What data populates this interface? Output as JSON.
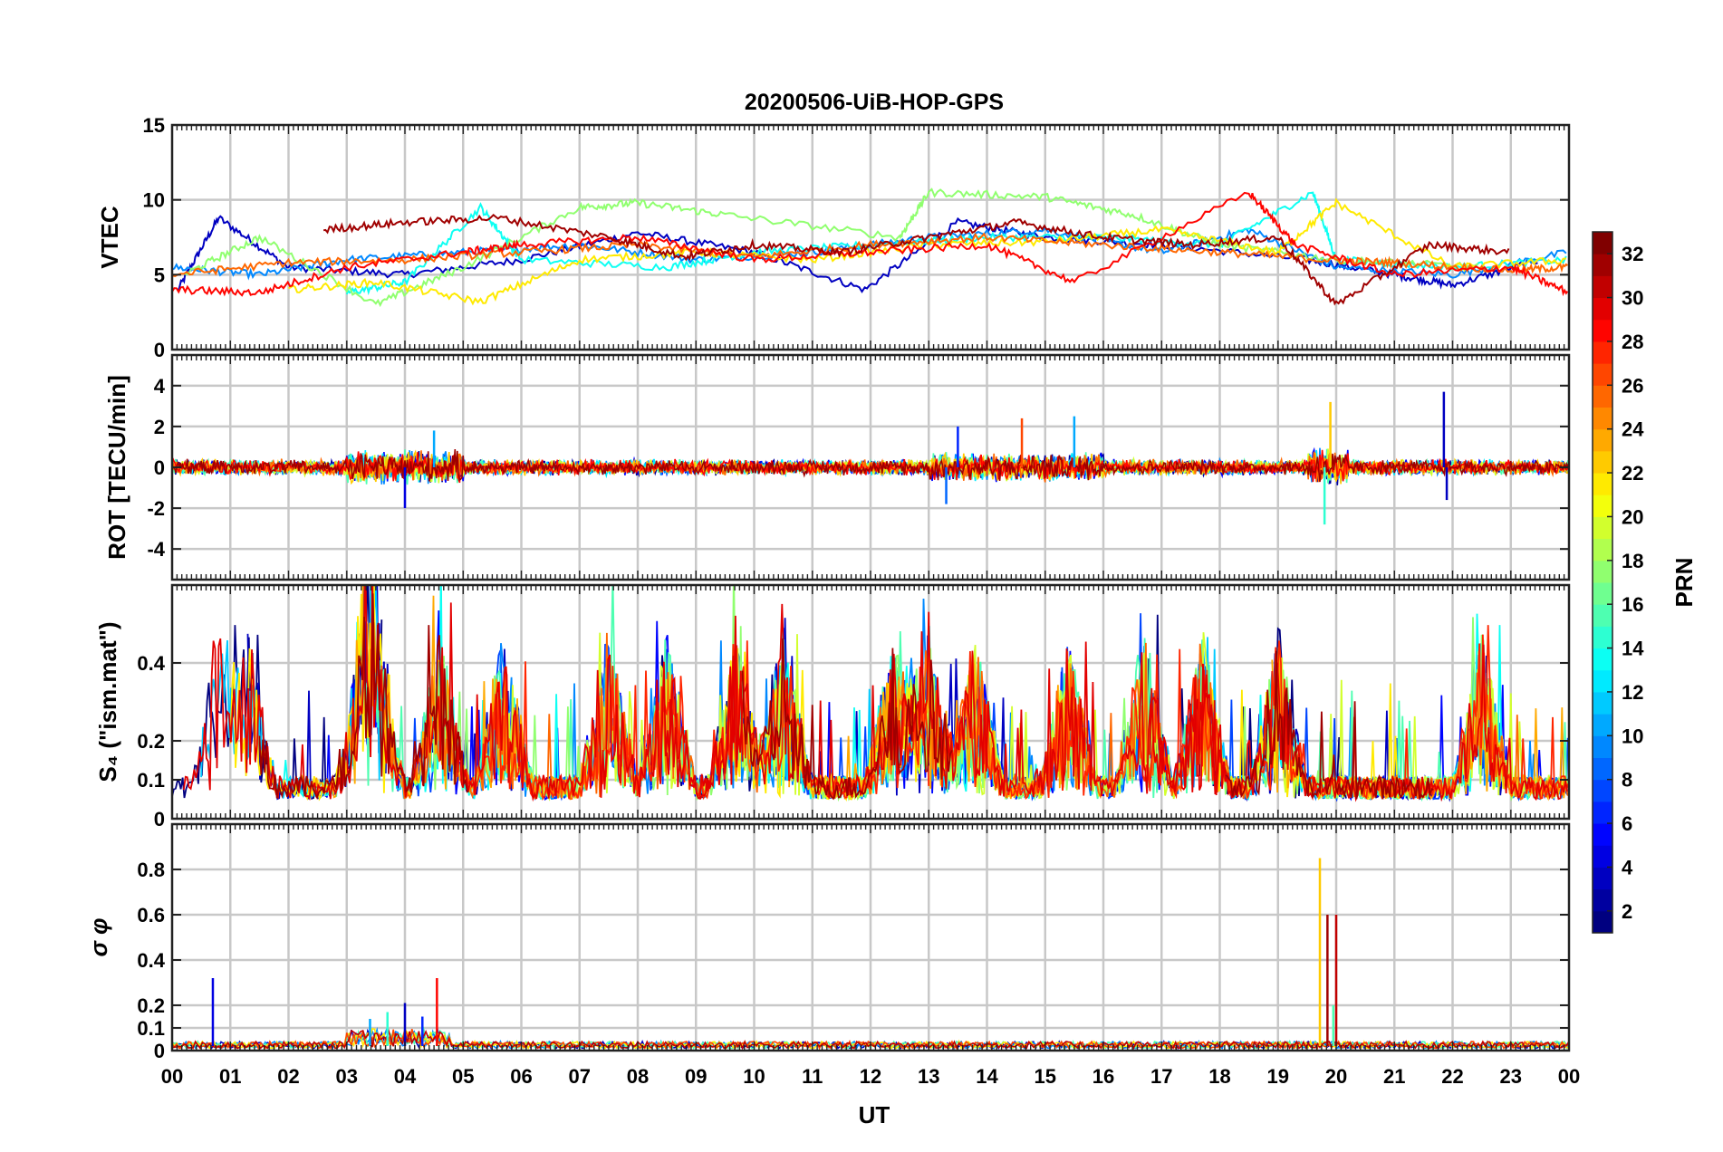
{
  "chart_data": {
    "type": "line",
    "title": "20200506-UiB-HOP-GPS",
    "xlabel": "UT",
    "x_ticks": [
      "00",
      "01",
      "02",
      "03",
      "04",
      "05",
      "06",
      "07",
      "08",
      "09",
      "10",
      "11",
      "12",
      "13",
      "14",
      "15",
      "16",
      "17",
      "18",
      "19",
      "20",
      "21",
      "22",
      "23",
      "00"
    ],
    "xlim_hours": [
      0,
      24
    ],
    "grid": true,
    "panels": [
      {
        "id": "vtec",
        "ylabel": "VTEC",
        "ylim": [
          0,
          15
        ],
        "yticks": [
          "0",
          "5",
          "10",
          "15"
        ],
        "ytick_values": [
          0,
          5,
          10,
          15
        ],
        "baseline_range": [
          4,
          8
        ],
        "series": [
          {
            "prn": 3,
            "x": [
              0.1,
              0.8,
              2.0,
              4.0,
              6.0,
              8.0,
              10.0,
              11.9,
              13.5,
              15.0,
              17.0,
              19.5,
              21.0,
              22.0,
              23.5
            ],
            "y": [
              4.0,
              8.8,
              5.5,
              5.0,
              6.0,
              7.8,
              6.5,
              4.0,
              8.5,
              7.5,
              7.0,
              6.0,
              5.0,
              4.3,
              6.0
            ]
          },
          {
            "prn": 9,
            "x": [
              0.0,
              1.5,
              3.0,
              5.0,
              7.0,
              9.0,
              11.0,
              13.0,
              15.0,
              17.0,
              18.5,
              20.0,
              22.0,
              24.0
            ],
            "y": [
              5.5,
              5.0,
              6.0,
              6.5,
              7.0,
              6.0,
              6.5,
              7.5,
              8.0,
              6.5,
              8.0,
              5.5,
              5.0,
              6.5
            ]
          },
          {
            "prn": 13,
            "x": [
              3.0,
              4.0,
              5.3,
              6.0,
              8.5,
              10.0,
              12.0,
              14.0,
              16.0,
              18.0,
              19.6,
              20.0,
              22.0,
              24.0
            ],
            "y": [
              3.8,
              4.5,
              9.5,
              6.0,
              5.5,
              6.5,
              7.0,
              7.5,
              7.5,
              7.0,
              10.5,
              6.0,
              5.5,
              6.0
            ]
          },
          {
            "prn": 17,
            "x": [
              0.2,
              1.5,
              3.5,
              5.0,
              7.0,
              8.0,
              9.5,
              12.5,
              13.0,
              15.0,
              16.5,
              18.0,
              20.0,
              22.5
            ],
            "y": [
              5.0,
              7.5,
              3.0,
              5.5,
              9.5,
              9.8,
              9.0,
              7.5,
              10.5,
              10.2,
              9.0,
              7.0,
              6.0,
              5.5
            ]
          },
          {
            "prn": 21,
            "x": [
              2.0,
              3.5,
              5.3,
              7.0,
              9.0,
              11.0,
              13.0,
              15.0,
              17.0,
              19.0,
              20.0,
              22.0,
              24.0
            ],
            "y": [
              4.0,
              4.5,
              3.2,
              6.0,
              6.5,
              6.0,
              7.0,
              7.2,
              8.0,
              6.5,
              9.8,
              5.5,
              6.0
            ]
          },
          {
            "prn": 25,
            "x": [
              0.0,
              2.0,
              4.0,
              6.0,
              8.0,
              10.0,
              12.0,
              14.0,
              16.0,
              18.0,
              19.8,
              21.0,
              23.0,
              24.0
            ],
            "y": [
              5.0,
              5.8,
              6.0,
              6.5,
              7.0,
              6.2,
              7.0,
              7.5,
              7.0,
              6.5,
              6.0,
              5.8,
              5.3,
              5.5
            ]
          },
          {
            "prn": 28,
            "x": [
              0.0,
              1.5,
              3.0,
              5.0,
              6.0,
              8.0,
              10.0,
              12.0,
              14.0,
              15.5,
              18.5,
              19.3,
              21.0,
              23.0,
              24.0
            ],
            "y": [
              4.0,
              3.8,
              5.5,
              6.5,
              7.0,
              7.5,
              6.0,
              6.5,
              7.0,
              4.5,
              10.5,
              7.0,
              5.0,
              5.5,
              3.8
            ]
          },
          {
            "prn": 31,
            "x": [
              2.6,
              4.0,
              5.6,
              7.5,
              8.8,
              10.0,
              11.5,
              13.0,
              14.5,
              16.0,
              17.5,
              19.0,
              20.0,
              21.6,
              23.0
            ],
            "y": [
              8.0,
              8.5,
              8.8,
              7.5,
              6.2,
              7.0,
              6.5,
              7.5,
              8.5,
              7.5,
              7.0,
              7.5,
              3.0,
              7.0,
              6.5
            ]
          }
        ]
      },
      {
        "id": "rot",
        "ylabel": "ROT [TECU/min]",
        "ylim": [
          -5.5,
          5.5
        ],
        "yticks": [
          "4",
          "2",
          "0",
          "-2",
          "-4"
        ],
        "ytick_values": [
          4,
          2,
          0,
          -2,
          -4
        ],
        "noise_amplitude": 0.3,
        "spikes": [
          {
            "x_hours": 4.0,
            "value": -2.0
          },
          {
            "x_hours": 4.5,
            "value": 1.8
          },
          {
            "x_hours": 13.5,
            "value": 2.0
          },
          {
            "x_hours": 13.3,
            "value": -1.8
          },
          {
            "x_hours": 14.6,
            "value": 2.4
          },
          {
            "x_hours": 15.5,
            "value": 2.5
          },
          {
            "x_hours": 19.8,
            "value": -2.8
          },
          {
            "x_hours": 19.9,
            "value": 3.2
          },
          {
            "x_hours": 21.85,
            "value": 3.7
          },
          {
            "x_hours": 21.9,
            "value": -1.6
          }
        ]
      },
      {
        "id": "s4",
        "ylabel": "S₄ (\"ism.mat\")",
        "ylim": [
          0,
          0.6
        ],
        "yticks": [
          "0",
          "0.1",
          "0.2",
          "0.4"
        ],
        "ytick_values": [
          0,
          0.1,
          0.2,
          0.4
        ],
        "baseline_range": [
          0.05,
          0.15
        ],
        "peak_hours": [
          0.8,
          1.3,
          3.3,
          3.5,
          4.6,
          5.7,
          7.5,
          8.5,
          9.7,
          10.5,
          12.4,
          13.0,
          13.8,
          15.4,
          16.7,
          17.7,
          19.0,
          22.5
        ]
      },
      {
        "id": "sigma_phi",
        "ylabel": "σ φ",
        "ylim": [
          0,
          1.0
        ],
        "yticks": [
          "0",
          "0.1",
          "0.2",
          "0.4",
          "0.6",
          "0.8"
        ],
        "ytick_values": [
          0,
          0.1,
          0.2,
          0.4,
          0.6,
          0.8
        ],
        "baseline_range": [
          0.01,
          0.04
        ],
        "spikes": [
          {
            "x_hours": 0.7,
            "value": 0.32
          },
          {
            "x_hours": 3.4,
            "value": 0.14
          },
          {
            "x_hours": 3.7,
            "value": 0.17
          },
          {
            "x_hours": 4.0,
            "value": 0.21
          },
          {
            "x_hours": 4.3,
            "value": 0.15
          },
          {
            "x_hours": 4.55,
            "value": 0.32
          },
          {
            "x_hours": 19.72,
            "value": 0.85
          },
          {
            "x_hours": 19.85,
            "value": 0.6
          },
          {
            "x_hours": 19.95,
            "value": 0.2
          },
          {
            "x_hours": 20.0,
            "value": 0.6
          }
        ]
      }
    ],
    "colorbar": {
      "label": "PRN",
      "range": [
        1,
        32
      ],
      "ticks": [
        "2",
        "4",
        "6",
        "8",
        "10",
        "12",
        "14",
        "16",
        "18",
        "20",
        "22",
        "24",
        "26",
        "28",
        "30",
        "32"
      ],
      "tick_values": [
        2,
        4,
        6,
        8,
        10,
        12,
        14,
        16,
        18,
        20,
        22,
        24,
        26,
        28,
        30,
        32
      ],
      "colormap": "jet"
    }
  }
}
